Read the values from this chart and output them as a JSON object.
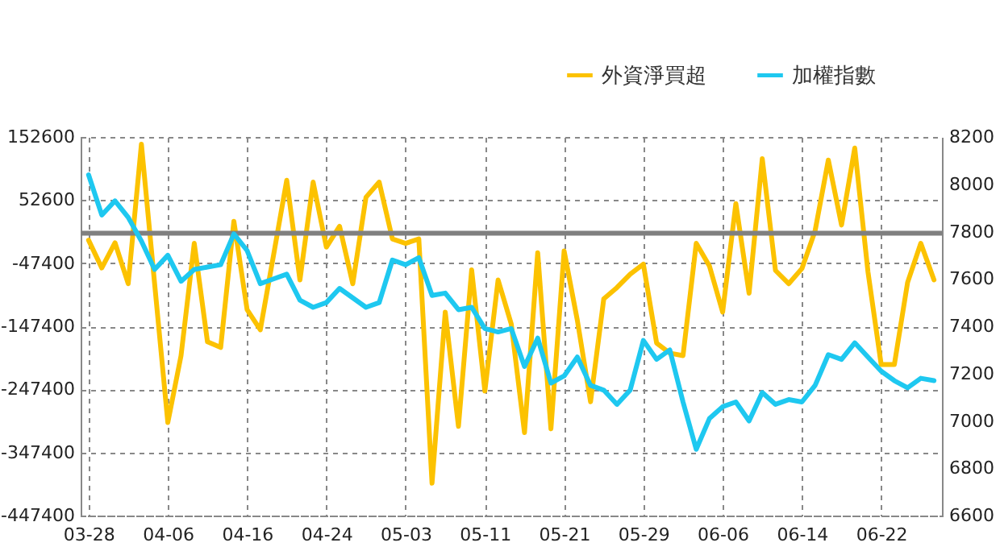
{
  "chart_data": {
    "type": "line",
    "categories": [
      "03-28",
      null,
      null,
      null,
      null,
      null,
      "04-06",
      null,
      null,
      null,
      null,
      null,
      "04-16",
      null,
      null,
      null,
      null,
      null,
      "04-24",
      null,
      null,
      null,
      null,
      null,
      "05-03",
      null,
      null,
      null,
      null,
      null,
      "05-11",
      null,
      null,
      null,
      null,
      null,
      "05-21",
      null,
      null,
      null,
      null,
      null,
      "05-29",
      null,
      null,
      null,
      null,
      null,
      "06-06",
      null,
      null,
      null,
      null,
      null,
      "06-14",
      null,
      null,
      null,
      null,
      null,
      "06-22",
      null,
      null,
      null,
      null
    ],
    "series": [
      {
        "name": "外資淨買超",
        "color": "#fcc200",
        "values": [
          -11000,
          -55000,
          -15000,
          -80000,
          141000,
          -80000,
          -300000,
          -194000,
          -16000,
          -172000,
          -181000,
          19000,
          -121000,
          -153000,
          -35000,
          84000,
          -74000,
          81000,
          -22000,
          11000,
          -80000,
          57000,
          81000,
          -9000,
          -16000,
          -9000,
          -396000,
          -125000,
          -306000,
          -58000,
          -250000,
          -74000,
          -144000,
          -316000,
          -31000,
          -310000,
          -28000,
          -138000,
          -267000,
          -104000,
          -86000,
          -65000,
          -49000,
          -174000,
          -190000,
          -194000,
          -16000,
          -52000,
          -125000,
          47000,
          -95000,
          118000,
          -59000,
          -80000,
          -56000,
          4000,
          116000,
          13000,
          135000,
          -61000,
          -208000,
          -208000,
          -78000,
          -16000,
          -74000
        ]
      },
      {
        "name": "加權指數",
        "color": "#1ec8f0",
        "axis": "y2",
        "values": [
          8040,
          7870,
          7930,
          7860,
          7760,
          7640,
          7700,
          7590,
          7640,
          7650,
          7660,
          7790,
          7720,
          7580,
          7600,
          7620,
          7510,
          7480,
          7500,
          7560,
          7520,
          7480,
          7500,
          7680,
          7660,
          7690,
          7530,
          7540,
          7470,
          7480,
          7390,
          7376,
          7390,
          7230,
          7350,
          7160,
          7190,
          7270,
          7150,
          7130,
          7070,
          7130,
          7340,
          7260,
          7300,
          7080,
          6880,
          7010,
          7060,
          7080,
          7000,
          7120,
          7070,
          7090,
          7080,
          7150,
          7280,
          7260,
          7330,
          7270,
          7210,
          7170,
          7140,
          7180,
          7170
        ]
      }
    ],
    "ylim": [
      -447400,
      152600
    ],
    "yticks": [
      -447400,
      -347400,
      -247400,
      -147400,
      -47400,
      52600,
      152600
    ],
    "y2lim": [
      6600,
      8200
    ],
    "y2ticks": [
      6600,
      6800,
      7000,
      7200,
      7400,
      7600,
      7800,
      8000,
      8200
    ],
    "ref_lines": [
      {
        "axis": "y",
        "value": 0,
        "color": "#808080"
      }
    ],
    "grid": true,
    "legend": "top right"
  }
}
